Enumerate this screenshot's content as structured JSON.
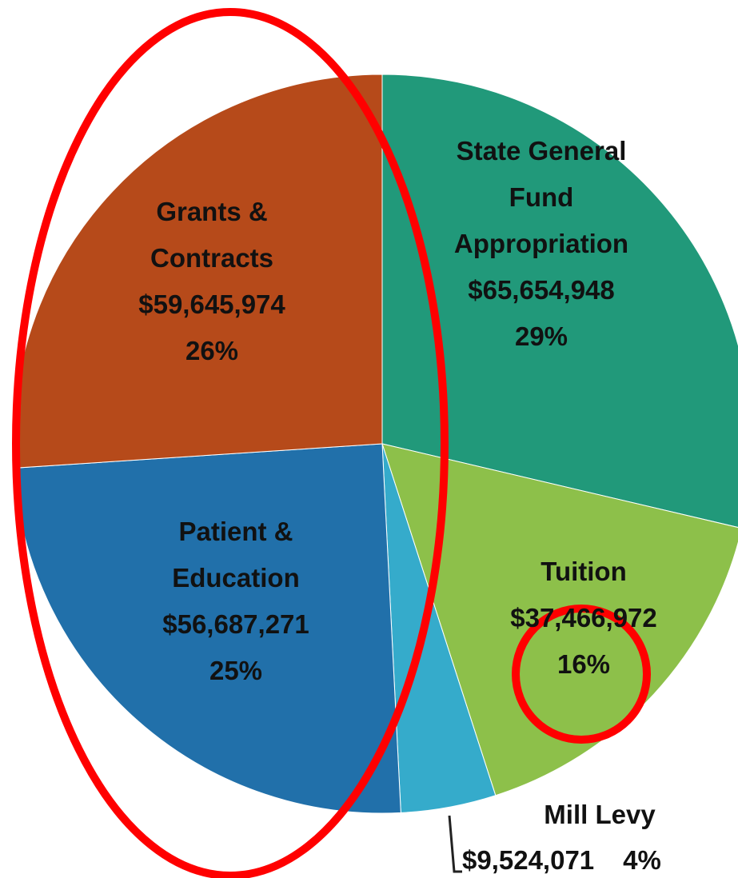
{
  "chart_data": {
    "type": "pie",
    "categories": [
      "State General Fund Appropriation",
      "Tuition",
      "Mill Levy",
      "Patient & Education",
      "Grants & Contracts"
    ],
    "values": [
      65654948,
      37466972,
      9524071,
      56687271,
      59645974
    ],
    "value_labels": [
      "$65,654,948",
      "$37,466,972",
      "$9,524,071",
      "$56,687,271",
      "$59,645,974"
    ],
    "percents": [
      29,
      16,
      4,
      25,
      26
    ],
    "percent_labels": [
      "29%",
      "16%",
      "4%",
      "25%",
      "26%"
    ],
    "colors": [
      "#21997a",
      "#8dc04a",
      "#35abcb",
      "#2170aa",
      "#b64a1a"
    ]
  }
}
